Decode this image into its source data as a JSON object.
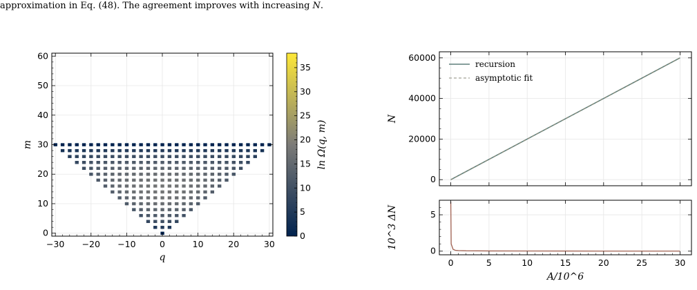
{
  "caption": {
    "text_before": "approximation in Eq. (48). The agreement improves with increasing ",
    "text_var": "N",
    "text_after": "."
  },
  "colors": {
    "cmap_low": "#00224e",
    "cmap_mid": "#7c7b78",
    "cmap_high": "#fee838",
    "recursion_line": "#5f7f7a",
    "fit_line": "#8a8a78",
    "residual_line": "#a06050"
  },
  "chart_data": [
    {
      "type": "heatmap",
      "title": "",
      "xlabel": "q",
      "ylabel": "m",
      "colorbar_label": "ln Ω(q, m)",
      "xlim": [
        -31,
        31
      ],
      "ylim": [
        -1,
        61
      ],
      "xticks": [
        -30,
        -20,
        -10,
        0,
        10,
        20,
        30
      ],
      "yticks": [
        0,
        10,
        20,
        30,
        40,
        50,
        60
      ],
      "colorbar_range": [
        0,
        38
      ],
      "colorbar_ticks": [
        0,
        5,
        10,
        15,
        20,
        25,
        30,
        35
      ],
      "N": 30,
      "grid": true
    },
    {
      "type": "line",
      "xlabel": "",
      "ylabel": "N",
      "xlim": [
        -1.5,
        31.5
      ],
      "ylim": [
        -3000,
        63000
      ],
      "yticks": [
        0,
        20000,
        40000,
        60000
      ],
      "legend_position": "top-left",
      "grid": true,
      "series": [
        {
          "name": "recursion",
          "x": [
            0,
            30
          ],
          "y": [
            0,
            60000
          ]
        },
        {
          "name": "asymptotic fit",
          "x": [
            0,
            30
          ],
          "y": [
            0,
            60000
          ]
        }
      ]
    },
    {
      "type": "line",
      "xlabel": "A/10^6",
      "ylabel": "10^3 ΔN",
      "xlim": [
        -1.5,
        31.5
      ],
      "ylim": [
        -0.5,
        7
      ],
      "xticks": [
        0,
        5,
        10,
        15,
        20,
        25,
        30
      ],
      "yticks": [
        0,
        5
      ],
      "grid": true,
      "series": [
        {
          "x": [
            0,
            0.05,
            0.3,
            0.6,
            1,
            2,
            5,
            10,
            15,
            20,
            25,
            30
          ],
          "y": [
            6.8,
            1.0,
            0.25,
            0.12,
            0.08,
            0.05,
            0.03,
            0.02,
            0.015,
            0.012,
            0.01,
            0.008
          ]
        }
      ]
    }
  ]
}
